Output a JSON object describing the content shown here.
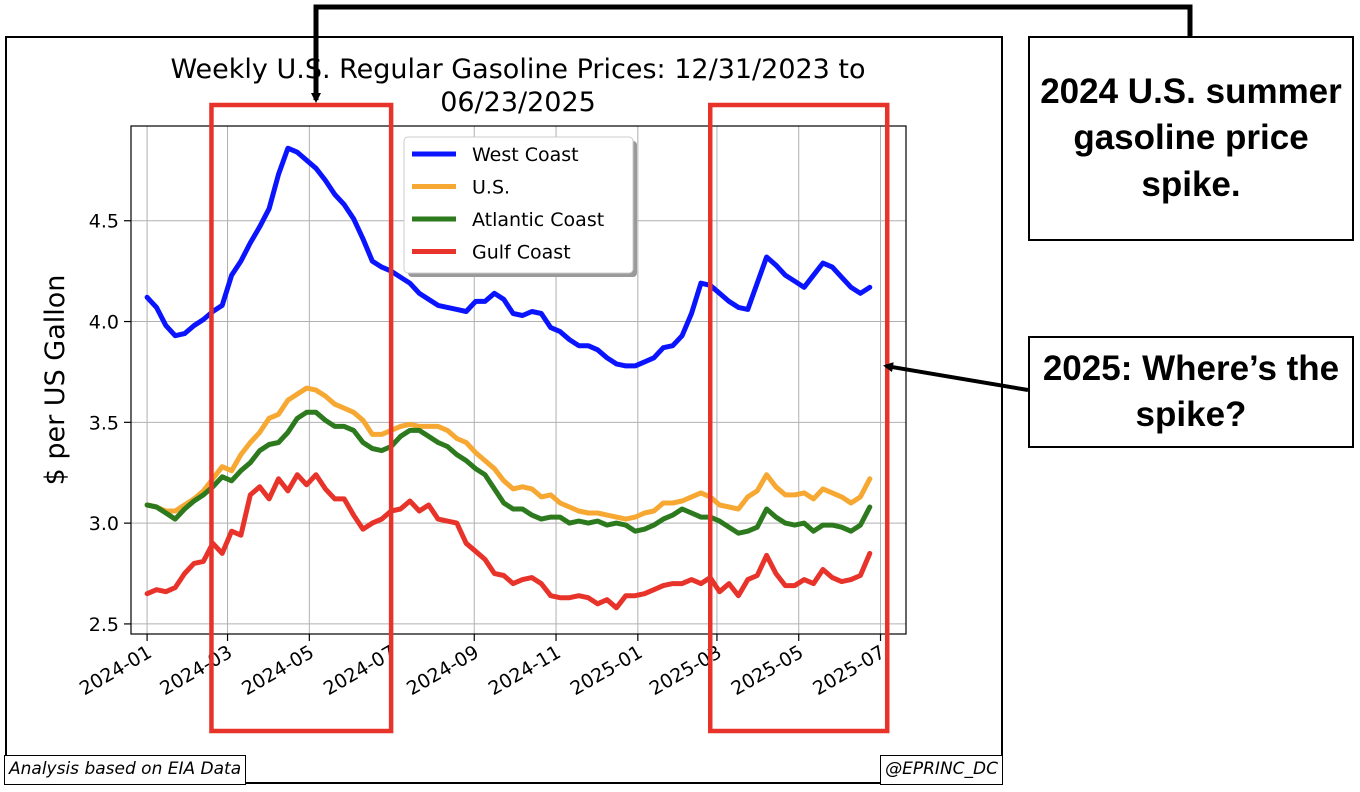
{
  "callouts": {
    "spike_2024": "2024 U.S. summer gasoline price spike.",
    "spike_2025": "2025: Where’s the spike?"
  },
  "footer": {
    "source": "Analysis based on EIA Data",
    "handle": "@EPRINC_DC"
  },
  "colors": {
    "west_coast": "#0a14ff",
    "us": "#f6a833",
    "atlantic": "#2d7a1e",
    "gulf": "#e8332a",
    "highlight_box": "#e8332a"
  },
  "chart_data": {
    "type": "line",
    "title_lines": [
      "Weekly U.S. Regular Gasoline Prices: 12/31/2023 to",
      "06/23/2025"
    ],
    "ylabel": "$ per US Gallon",
    "xlabel": "",
    "x_range": [
      "2023-12-20",
      "2025-07-20"
    ],
    "ylim": [
      2.45,
      4.97
    ],
    "yticks": [
      2.5,
      3.0,
      3.5,
      4.0,
      4.5
    ],
    "xticks": [
      "2024-01",
      "2024-03",
      "2024-05",
      "2024-07",
      "2024-09",
      "2024-11",
      "2025-01",
      "2025-03",
      "2025-05",
      "2025-07"
    ],
    "grid": true,
    "legend_placement": "upper-center",
    "highlight_ranges": [
      [
        "2024-02-18",
        "2024-07-01"
      ],
      [
        "2025-02-24",
        "2025-07-06"
      ]
    ],
    "x": [
      "2024-01-01",
      "2024-01-08",
      "2024-01-15",
      "2024-01-22",
      "2024-01-29",
      "2024-02-05",
      "2024-02-12",
      "2024-02-19",
      "2024-02-26",
      "2024-03-04",
      "2024-03-11",
      "2024-03-18",
      "2024-03-25",
      "2024-04-01",
      "2024-04-08",
      "2024-04-15",
      "2024-04-22",
      "2024-04-29",
      "2024-05-06",
      "2024-05-13",
      "2024-05-20",
      "2024-05-27",
      "2024-06-03",
      "2024-06-10",
      "2024-06-17",
      "2024-06-24",
      "2024-07-01",
      "2024-07-08",
      "2024-07-15",
      "2024-07-22",
      "2024-07-29",
      "2024-08-05",
      "2024-08-12",
      "2024-08-19",
      "2024-08-26",
      "2024-09-02",
      "2024-09-09",
      "2024-09-16",
      "2024-09-23",
      "2024-09-30",
      "2024-10-07",
      "2024-10-14",
      "2024-10-21",
      "2024-10-28",
      "2024-11-04",
      "2024-11-11",
      "2024-11-18",
      "2024-11-25",
      "2024-12-02",
      "2024-12-09",
      "2024-12-16",
      "2024-12-23",
      "2024-12-30",
      "2025-01-06",
      "2025-01-13",
      "2025-01-20",
      "2025-01-27",
      "2025-02-03",
      "2025-02-10",
      "2025-02-17",
      "2025-02-24",
      "2025-03-03",
      "2025-03-10",
      "2025-03-17",
      "2025-03-24",
      "2025-03-31",
      "2025-04-07",
      "2025-04-14",
      "2025-04-21",
      "2025-04-28",
      "2025-05-05",
      "2025-05-12",
      "2025-05-19",
      "2025-05-26",
      "2025-06-02",
      "2025-06-09",
      "2025-06-16",
      "2025-06-23"
    ],
    "series": [
      {
        "name": "West Coast",
        "values": [
          4.12,
          4.07,
          3.98,
          3.93,
          3.94,
          3.98,
          4.01,
          4.05,
          4.08,
          4.23,
          4.3,
          4.39,
          4.47,
          4.56,
          4.73,
          4.86,
          4.84,
          4.8,
          4.76,
          4.7,
          4.63,
          4.58,
          4.51,
          4.41,
          4.3,
          4.27,
          4.25,
          4.22,
          4.19,
          4.14,
          4.11,
          4.08,
          4.07,
          4.06,
          4.05,
          4.1,
          4.1,
          4.14,
          4.11,
          4.04,
          4.03,
          4.05,
          4.04,
          3.97,
          3.95,
          3.91,
          3.88,
          3.88,
          3.86,
          3.82,
          3.79,
          3.78,
          3.78,
          3.8,
          3.82,
          3.87,
          3.88,
          3.93,
          4.04,
          4.19,
          4.18,
          4.14,
          4.1,
          4.07,
          4.06,
          4.19,
          4.32,
          4.28,
          4.23,
          4.2,
          4.17,
          4.23,
          4.29,
          4.27,
          4.22,
          4.17,
          4.14,
          4.17
        ]
      },
      {
        "name": "U.S.",
        "values": [
          3.09,
          3.08,
          3.06,
          3.06,
          3.09,
          3.12,
          3.16,
          3.22,
          3.28,
          3.26,
          3.34,
          3.4,
          3.45,
          3.52,
          3.54,
          3.61,
          3.64,
          3.67,
          3.66,
          3.63,
          3.59,
          3.57,
          3.55,
          3.51,
          3.44,
          3.44,
          3.46,
          3.48,
          3.49,
          3.48,
          3.48,
          3.48,
          3.46,
          3.42,
          3.4,
          3.35,
          3.31,
          3.27,
          3.21,
          3.17,
          3.18,
          3.17,
          3.13,
          3.14,
          3.1,
          3.08,
          3.06,
          3.05,
          3.05,
          3.04,
          3.03,
          3.02,
          3.03,
          3.05,
          3.06,
          3.1,
          3.1,
          3.11,
          3.13,
          3.15,
          3.13,
          3.09,
          3.08,
          3.07,
          3.13,
          3.16,
          3.24,
          3.18,
          3.14,
          3.14,
          3.15,
          3.12,
          3.17,
          3.15,
          3.13,
          3.1,
          3.13,
          3.22
        ]
      },
      {
        "name": "Atlantic Coast",
        "values": [
          3.09,
          3.08,
          3.05,
          3.02,
          3.07,
          3.11,
          3.14,
          3.18,
          3.23,
          3.21,
          3.26,
          3.3,
          3.36,
          3.39,
          3.4,
          3.45,
          3.52,
          3.55,
          3.55,
          3.51,
          3.48,
          3.48,
          3.46,
          3.4,
          3.37,
          3.36,
          3.38,
          3.43,
          3.46,
          3.46,
          3.43,
          3.4,
          3.38,
          3.34,
          3.31,
          3.27,
          3.24,
          3.17,
          3.1,
          3.07,
          3.07,
          3.04,
          3.02,
          3.03,
          3.03,
          3.0,
          3.01,
          3.0,
          3.01,
          2.99,
          3.0,
          2.99,
          2.96,
          2.97,
          2.99,
          3.02,
          3.04,
          3.07,
          3.05,
          3.03,
          3.03,
          3.01,
          2.98,
          2.95,
          2.96,
          2.98,
          3.07,
          3.03,
          3.0,
          2.99,
          3.0,
          2.96,
          2.99,
          2.99,
          2.98,
          2.96,
          2.99,
          3.08
        ]
      },
      {
        "name": "Gulf Coast",
        "values": [
          2.65,
          2.67,
          2.66,
          2.68,
          2.75,
          2.8,
          2.81,
          2.9,
          2.85,
          2.96,
          2.94,
          3.14,
          3.18,
          3.12,
          3.22,
          3.16,
          3.24,
          3.19,
          3.24,
          3.17,
          3.12,
          3.12,
          3.04,
          2.97,
          3.0,
          3.02,
          3.06,
          3.07,
          3.11,
          3.06,
          3.09,
          3.02,
          3.01,
          3.0,
          2.9,
          2.86,
          2.82,
          2.75,
          2.74,
          2.7,
          2.72,
          2.73,
          2.7,
          2.64,
          2.63,
          2.63,
          2.64,
          2.63,
          2.6,
          2.62,
          2.58,
          2.64,
          2.64,
          2.65,
          2.67,
          2.69,
          2.7,
          2.7,
          2.72,
          2.7,
          2.73,
          2.66,
          2.7,
          2.64,
          2.72,
          2.74,
          2.84,
          2.75,
          2.69,
          2.69,
          2.72,
          2.7,
          2.77,
          2.73,
          2.71,
          2.72,
          2.74,
          2.85
        ]
      }
    ]
  }
}
